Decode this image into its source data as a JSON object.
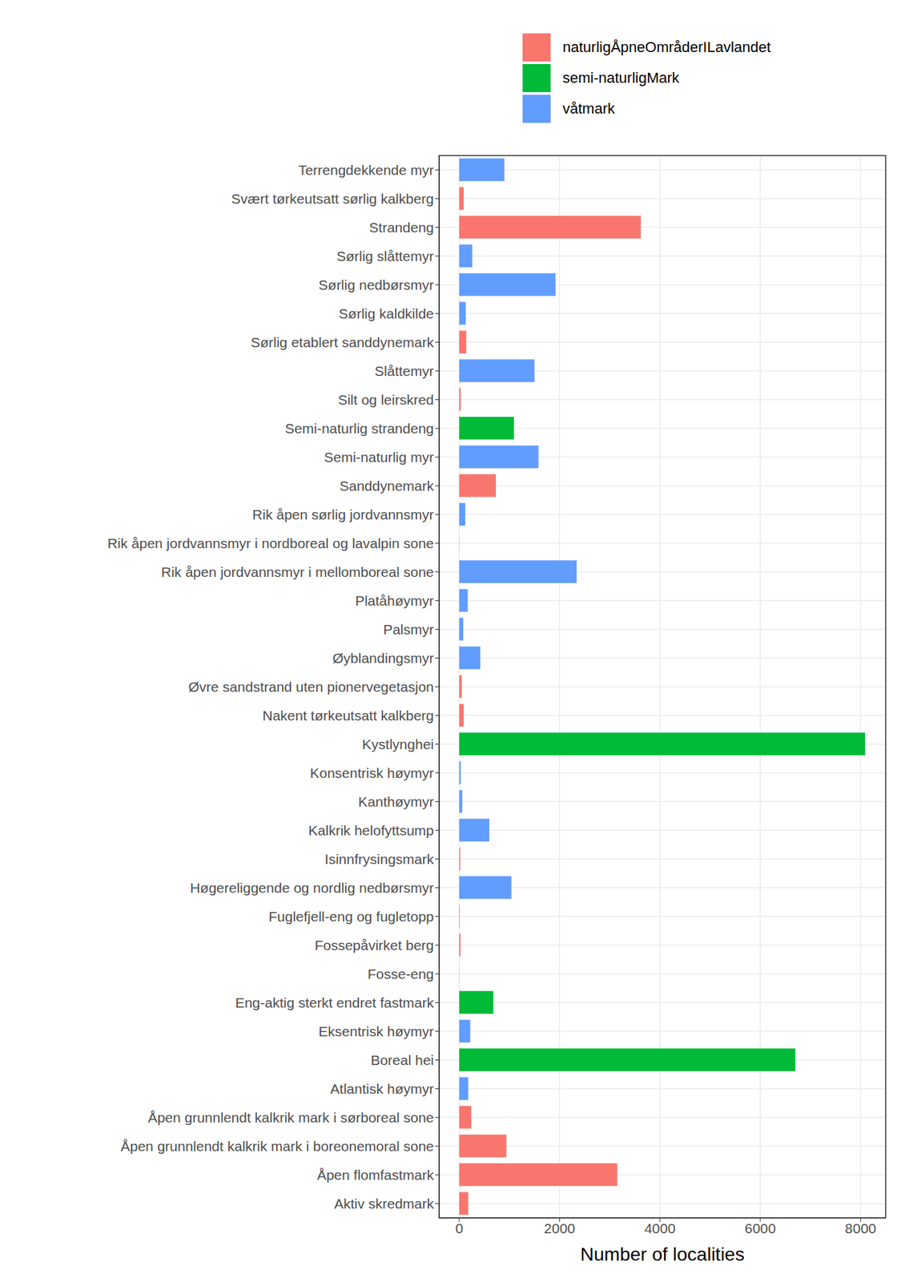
{
  "chart_data": {
    "type": "bar",
    "orientation": "horizontal",
    "x_label": "Number of localities",
    "categories": [
      "Terrengdekkende myr",
      "Svært tørkeutsatt sørlig kalkberg",
      "Strandeng",
      "Sørlig slåttemyr",
      "Sørlig nedbørsmyr",
      "Sørlig kaldkilde",
      "Sørlig etablert sanddynemark",
      "Slåttemyr",
      "Silt og leirskred",
      "Semi-naturlig strandeng",
      "Semi-naturlig myr",
      "Sanddynemark",
      "Rik åpen sørlig jordvannsmyr",
      "Rik åpen jordvannsmyr i nordboreal og lavalpin sone",
      "Rik åpen jordvannsmyr i mellomboreal sone",
      "Platåhøymyr",
      "Palsmyr",
      "Øyblandingsmyr",
      "Øvre sandstrand uten pionervegetasjon",
      "Nakent tørkeutsatt kalkberg",
      "Kystlynghei",
      "Konsentrisk høymyr",
      "Kanthøymyr",
      "Kalkrik helofyttsump",
      "Isinnfrysingsmark",
      "Høgereliggende og nordlig nedbørsmyr",
      "Fuglefjell-eng og fugletopp",
      "Fossepåvirket berg",
      "Fosse-eng",
      "Eng-aktig sterkt endret fastmark",
      "Eksentrisk høymyr",
      "Boreal hei",
      "Atlantisk høymyr",
      "Åpen grunnlendt kalkrik mark i sørboreal sone",
      "Åpen grunnlendt kalkrik mark i boreonemoral sone",
      "Åpen flomfastmark",
      "Aktiv skredmark"
    ],
    "series": [
      {
        "name": "naturligÅpneOmråderILavlandet",
        "color": "#f8766d",
        "values": [
          null,
          90,
          3620,
          null,
          null,
          null,
          140,
          null,
          30,
          null,
          null,
          730,
          null,
          null,
          null,
          null,
          null,
          null,
          50,
          90,
          null,
          null,
          null,
          null,
          20,
          null,
          10,
          25,
          2,
          null,
          null,
          null,
          null,
          240,
          940,
          3150,
          180
        ]
      },
      {
        "name": "semi-naturligMark",
        "color": "#00ba38",
        "values": [
          null,
          null,
          null,
          null,
          null,
          null,
          null,
          null,
          null,
          1090,
          null,
          null,
          null,
          null,
          null,
          null,
          null,
          null,
          null,
          null,
          8090,
          null,
          null,
          null,
          null,
          null,
          null,
          null,
          null,
          680,
          null,
          6700,
          null,
          null,
          null,
          null,
          null
        ]
      },
      {
        "name": "våtmark",
        "color": "#619cff",
        "values": [
          900,
          null,
          null,
          260,
          1920,
          130,
          null,
          1500,
          null,
          null,
          1580,
          null,
          120,
          2,
          2340,
          170,
          80,
          420,
          null,
          null,
          null,
          30,
          60,
          600,
          null,
          1040,
          null,
          null,
          null,
          null,
          220,
          null,
          180,
          null,
          null,
          null,
          null
        ]
      }
    ],
    "xlim": [
      -400,
      8500
    ],
    "xticks": [
      0,
      2000,
      4000,
      6000,
      8000
    ],
    "grid": true,
    "legend": "top"
  }
}
